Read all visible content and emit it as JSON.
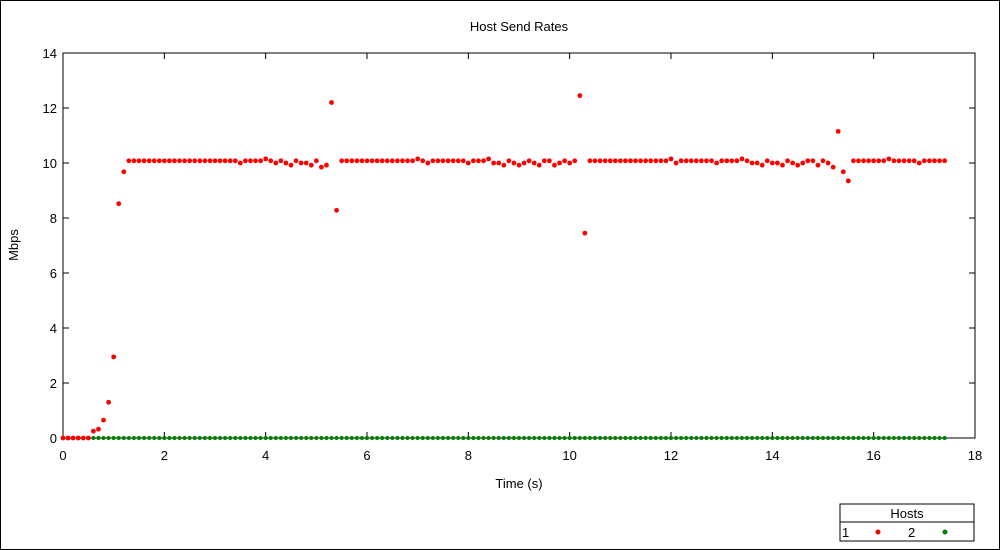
{
  "chart_data": {
    "type": "scatter",
    "title": "Host Send Rates",
    "xlabel": "Time (s)",
    "ylabel": "Mbps",
    "xlim": [
      0,
      18
    ],
    "ylim": [
      0,
      14
    ],
    "xticks": [
      0,
      2,
      4,
      6,
      8,
      10,
      12,
      14,
      16,
      18
    ],
    "yticks": [
      0,
      2,
      4,
      6,
      8,
      10,
      12,
      14
    ],
    "grid": false,
    "legend": {
      "title": "Hosts",
      "placement": "bottom-right"
    },
    "series": [
      {
        "name": "1",
        "color": "#ff0000",
        "x": [
          0,
          0.1,
          0.2,
          0.3,
          0.4,
          0.5,
          0.6,
          0.7,
          0.8,
          0.9,
          1.0,
          1.1,
          1.2,
          1.3,
          1.4,
          1.5,
          1.6,
          1.7,
          1.8,
          1.9,
          2.0,
          2.1,
          2.2,
          2.3,
          2.4,
          2.5,
          2.6,
          2.7,
          2.8,
          2.9,
          3.0,
          3.1,
          3.2,
          3.3,
          3.4,
          3.5,
          3.6,
          3.7,
          3.8,
          3.9,
          4.0,
          4.1,
          4.2,
          4.3,
          4.4,
          4.5,
          4.6,
          4.7,
          4.8,
          4.9,
          5.0,
          5.1,
          5.2,
          5.3,
          5.4,
          5.5,
          5.6,
          5.7,
          5.8,
          5.9,
          6.0,
          6.1,
          6.2,
          6.3,
          6.4,
          6.5,
          6.6,
          6.7,
          6.8,
          6.9,
          7.0,
          7.1,
          7.2,
          7.3,
          7.4,
          7.5,
          7.6,
          7.7,
          7.8,
          7.9,
          8.0,
          8.1,
          8.2,
          8.3,
          8.4,
          8.5,
          8.6,
          8.7,
          8.8,
          8.9,
          9.0,
          9.1,
          9.2,
          9.3,
          9.4,
          9.5,
          9.6,
          9.7,
          9.8,
          9.9,
          10.0,
          10.1,
          10.2,
          10.3,
          10.4,
          10.5,
          10.6,
          10.7,
          10.8,
          10.9,
          11.0,
          11.1,
          11.2,
          11.3,
          11.4,
          11.5,
          11.6,
          11.7,
          11.8,
          11.9,
          12.0,
          12.1,
          12.2,
          12.3,
          12.4,
          12.5,
          12.6,
          12.7,
          12.8,
          12.9,
          13.0,
          13.1,
          13.2,
          13.3,
          13.4,
          13.5,
          13.6,
          13.7,
          13.8,
          13.9,
          14.0,
          14.1,
          14.2,
          14.3,
          14.4,
          14.5,
          14.6,
          14.7,
          14.8,
          14.9,
          15.0,
          15.1,
          15.2,
          15.3,
          15.4,
          15.5,
          15.6,
          15.7,
          15.8,
          15.9,
          16.0,
          16.1,
          16.2,
          16.3,
          16.4,
          16.5,
          16.6,
          16.7,
          16.8,
          16.9,
          17.0,
          17.1,
          17.2,
          17.3,
          17.4
        ],
        "y": [
          0,
          0,
          0,
          0,
          0,
          0,
          0.25,
          0.32,
          0.65,
          1.3,
          2.95,
          8.52,
          9.68,
          10.08,
          10.08,
          10.08,
          10.08,
          10.08,
          10.08,
          10.08,
          10.08,
          10.08,
          10.08,
          10.08,
          10.08,
          10.08,
          10.08,
          10.08,
          10.08,
          10.08,
          10.08,
          10.08,
          10.08,
          10.08,
          10.08,
          10.0,
          10.08,
          10.08,
          10.08,
          10.08,
          10.15,
          10.08,
          10.0,
          10.08,
          10.0,
          9.92,
          10.08,
          10.0,
          10.0,
          9.92,
          10.08,
          9.85,
          9.92,
          12.2,
          8.28,
          10.08,
          10.08,
          10.08,
          10.08,
          10.08,
          10.08,
          10.08,
          10.08,
          10.08,
          10.08,
          10.08,
          10.08,
          10.08,
          10.08,
          10.08,
          10.15,
          10.08,
          10.0,
          10.08,
          10.08,
          10.08,
          10.08,
          10.08,
          10.08,
          10.08,
          10.0,
          10.08,
          10.08,
          10.08,
          10.15,
          10.0,
          10.0,
          9.92,
          10.08,
          10.0,
          9.92,
          10.0,
          10.08,
          10.0,
          9.92,
          10.08,
          10.08,
          9.92,
          10.0,
          10.08,
          10.0,
          10.08,
          12.45,
          7.45,
          10.08,
          10.08,
          10.08,
          10.08,
          10.08,
          10.08,
          10.08,
          10.08,
          10.08,
          10.08,
          10.08,
          10.08,
          10.08,
          10.08,
          10.08,
          10.08,
          10.15,
          10.0,
          10.08,
          10.08,
          10.08,
          10.08,
          10.08,
          10.08,
          10.08,
          10.0,
          10.08,
          10.08,
          10.08,
          10.08,
          10.15,
          10.08,
          10.0,
          10.0,
          9.92,
          10.08,
          10.0,
          10.0,
          9.92,
          10.08,
          10.0,
          9.92,
          10.0,
          10.08,
          10.08,
          9.92,
          10.08,
          10.0,
          9.85,
          11.15,
          9.68,
          9.35,
          10.08,
          10.08,
          10.08,
          10.08,
          10.08,
          10.08,
          10.08,
          10.15,
          10.08,
          10.08,
          10.08,
          10.08,
          10.08,
          10.0,
          10.08,
          10.08,
          10.08,
          10.08,
          10.08
        ]
      },
      {
        "name": "2",
        "color": "#008000",
        "x_start": 0,
        "x_end": 17.4,
        "x_step": 0.1,
        "constant_y": 0
      }
    ]
  }
}
